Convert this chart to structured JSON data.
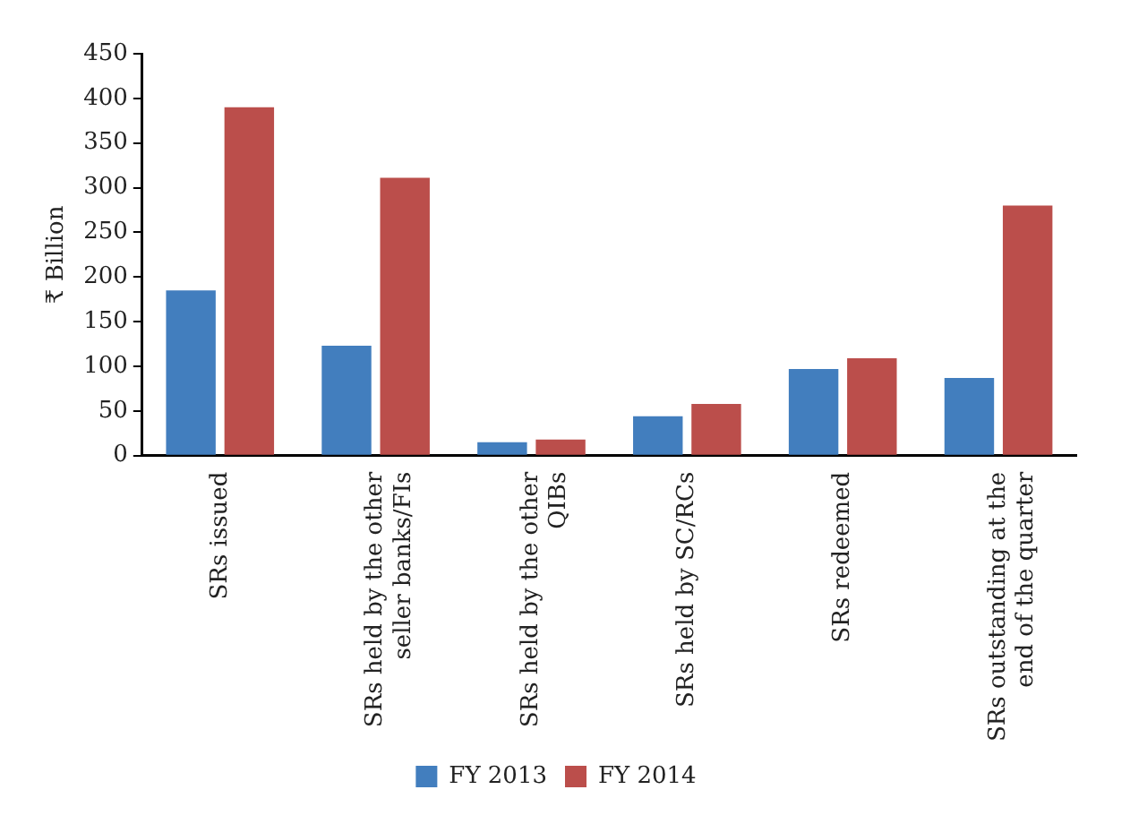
{
  "chart_data": {
    "type": "bar",
    "ylabel": "₹ Billion",
    "categories": [
      "SRs issued",
      "SRs held by the other seller banks/FIs",
      "SRs held by the other QIBs",
      "SRs held by SC/RCs",
      "SRs redeemed",
      "SRs outstanding at the end of the quarter"
    ],
    "series": [
      {
        "name": "FY 2013",
        "color": "#427ebe",
        "values": [
          185,
          123,
          15,
          44,
          97,
          87
        ]
      },
      {
        "name": "FY 2014",
        "color": "#bb4e4b",
        "values": [
          390,
          311,
          18,
          58,
          109,
          280
        ]
      }
    ],
    "ylim": [
      0,
      450
    ],
    "yticks": [
      0,
      50,
      100,
      150,
      200,
      250,
      300,
      350,
      400,
      450
    ],
    "grid": false,
    "legend": "bottom"
  }
}
